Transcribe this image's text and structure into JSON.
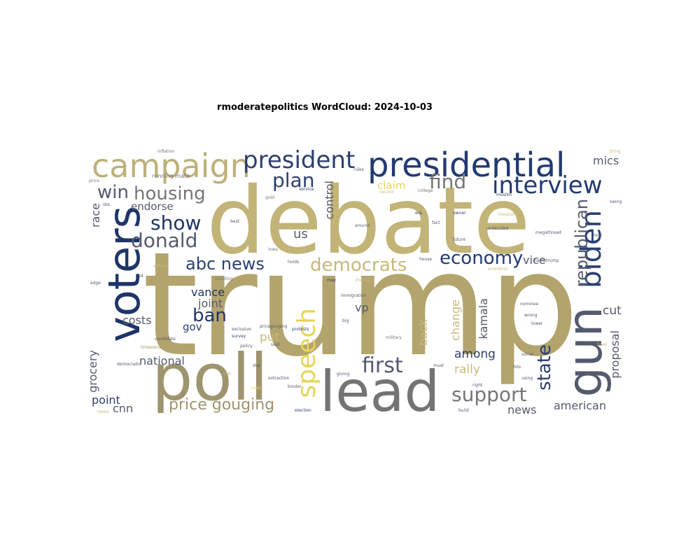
{
  "title": "rmoderatepolitics WordCloud: 2024-10-03",
  "colors": {
    "khaki": "#b8a972",
    "tan": "#bdb07a",
    "gray": "#7b7b7b",
    "navy": "#1f3569",
    "slate": "#545a6e",
    "gold": "#e8d45a"
  },
  "words": {
    "trump": "trump",
    "debate": "debate",
    "poll": "poll",
    "lead": "lead",
    "voters": "voters",
    "presidential": "presidential",
    "campaign": "campaign",
    "gun": "gun",
    "president": "president",
    "biden": "biden",
    "interview": "interview",
    "speech": "speech",
    "democrats": "democrats",
    "abc_news": "abc news",
    "economy": "economy",
    "housing": "housing",
    "show": "show",
    "donald": "donald",
    "win": "win",
    "plan": "plan",
    "find": "find",
    "first": "first",
    "support": "support",
    "price_gouging": "price gouging",
    "republican": "republican",
    "state": "state",
    "ban": "ban",
    "vance": "vance",
    "joint": "joint",
    "costs": "costs",
    "gov": "gov",
    "national": "national",
    "grocery": "grocery",
    "point": "point",
    "cnn": "cnn",
    "endorse": "endorse",
    "race": "race",
    "control": "control",
    "us": "us",
    "claim": "claim",
    "mics": "mics",
    "vice": "vice",
    "vp": "vp",
    "kamala": "kamala",
    "change": "change",
    "back": "back",
    "put": "put",
    "among": "among",
    "rally": "rally",
    "cut": "cut",
    "proposal": "proposal",
    "news": "news",
    "american": "american",
    "running_mate": "running mate",
    "inflation": "inflation",
    "price": "price",
    "shooting": "shooting",
    "immigration": "immigration",
    "undecided": "undecided",
    "megathread": "megathread",
    "cheney": "cheney",
    "military": "military",
    "candidate": "candidate",
    "survey": "survey",
    "exclusive": "exclusive",
    "pricegouging": "pricegouging",
    "policy": "policy",
    "democratic": "democratic",
    "election": "election",
    "border": "border",
    "protests": "protests",
    "giving": "giving",
    "right": "right",
    "wrong": "wrong",
    "nominee": "nominee",
    "lower": "lower",
    "college": "college",
    "service": "service",
    "muslim": "muslim",
    "around": "around",
    "future": "future",
    "fact": "fact",
    "economic": "economic",
    "harristrump": "harristrump",
    "house": "house",
    "holds": "holds",
    "since": "since",
    "build": "build",
    "bring": "bring",
    "swing": "swing",
    "lines": "lines",
    "rules": "rules",
    "gold": "gold",
    "says": "says",
    "social": "social",
    "using": "using",
    "big": "big",
    "said": "said",
    "may": "may",
    "arizona": "arizona",
    "record": "record",
    "misspoke": "misspoke",
    "owner": "owner",
    "era": "era",
    "timesiena": "timesiena",
    "trusted": "trusted",
    "persons": "persons",
    "edge": "edge",
    "sbs": "sbs",
    "host": "host",
    "ad": "ad",
    "star": "star",
    "bill": "bill",
    "hits": "hits",
    "ouster": "ouster",
    "taxes": "taxes",
    "best": "best",
    "lowa": "lowa",
    "poets": "poets",
    "lost": "lost",
    "labor": "labor",
    "aide": "aide",
    "plans": "plans",
    "must": "must",
    "people": "people",
    "trust": "trust",
    "ended": "ended",
    "sexual": "sexual",
    "extraction": "extraction"
  }
}
